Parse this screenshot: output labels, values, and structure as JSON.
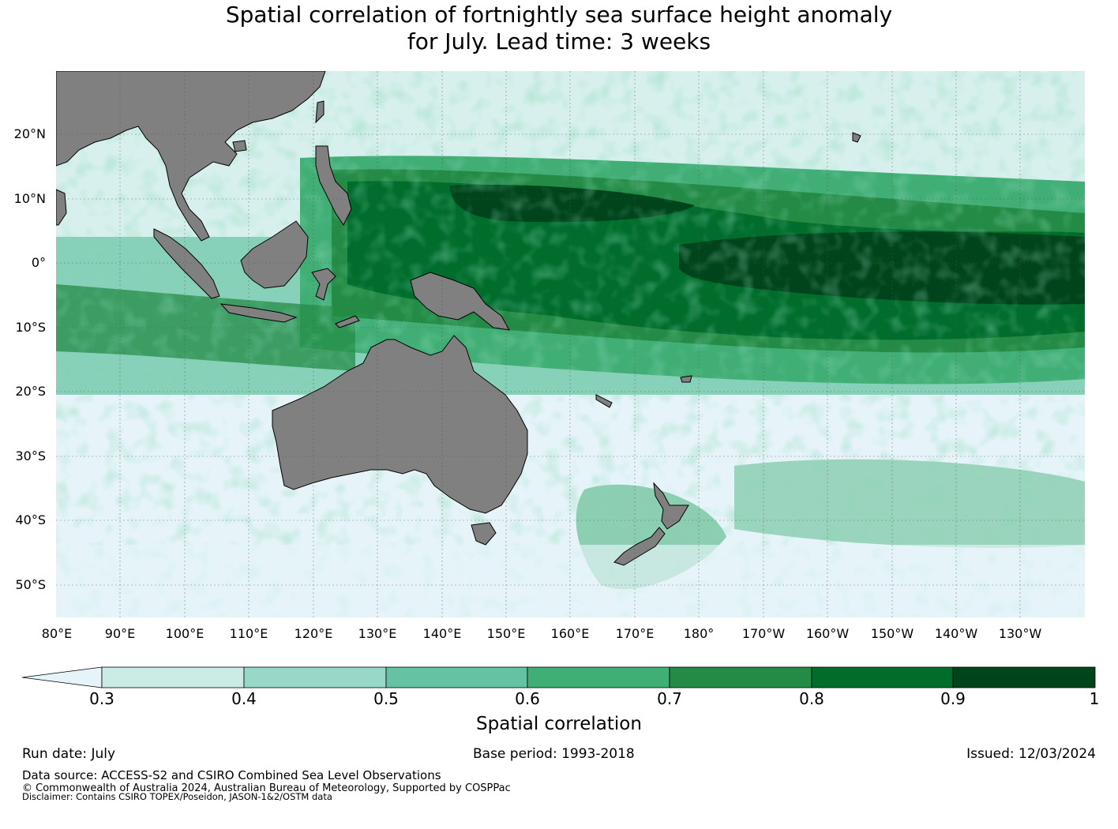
{
  "title_line1": "Spatial correlation of fortnightly sea surface height anomaly",
  "title_line2": "for July. Lead time: 3 weeks",
  "map": {
    "lon_range": [
      80,
      240
    ],
    "lat_range": [
      -55,
      30
    ],
    "land_color": "#808080",
    "ocean_low_color": "#e6f4f9",
    "lat_ticks": [
      "20°N",
      "10°N",
      "0°",
      "10°S",
      "20°S",
      "30°S",
      "40°S",
      "50°S"
    ],
    "lon_ticks": [
      "80°E",
      "90°E",
      "100°E",
      "110°E",
      "120°E",
      "130°E",
      "140°E",
      "150°E",
      "160°E",
      "170°E",
      "180°",
      "170°W",
      "160°W",
      "150°W",
      "140°W",
      "130°W"
    ]
  },
  "colorbar": {
    "title": "Spatial correlation",
    "labels": [
      "0.3",
      "0.4",
      "0.5",
      "0.6",
      "0.7",
      "0.8",
      "0.9",
      "1"
    ],
    "colors": [
      "#e6f4f9",
      "#cbece4",
      "#98d8c8",
      "#65c2a3",
      "#41ae76",
      "#238b45",
      "#006d2c",
      "#00441b"
    ]
  },
  "footer": {
    "run_date": "Run date: July",
    "base_period": "Base period: 1993-2018",
    "issued": "Issued: 12/03/2024",
    "data_source": "Data source: ACCESS-S2 and CSIRO Combined Sea Level Observations",
    "copyright": "© Commonwealth of Australia 2024, Australian Bureau of Meteorology, Supported by COSPPac",
    "disclaimer": "Disclaimer: Contains CSIRO TOPEX/Poseidon, JASON-1&2/OSTM data"
  }
}
